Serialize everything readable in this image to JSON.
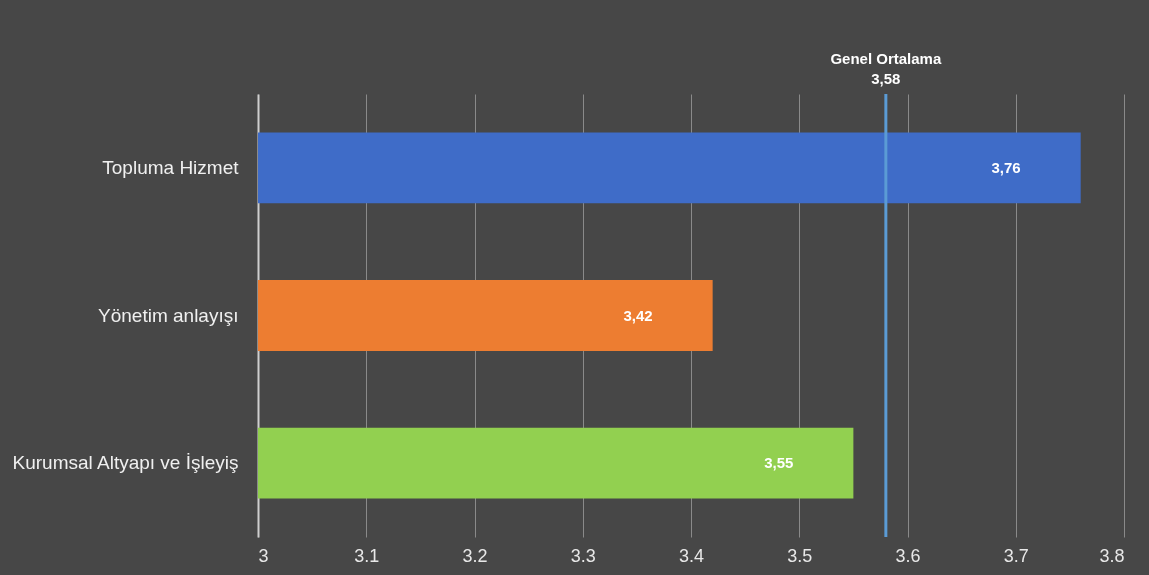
{
  "chart_data": {
    "type": "bar",
    "orientation": "horizontal",
    "categories": [
      "Topluma Hizmet",
      "Yönetim anlayışı",
      "Kurumsal Altyapı ve İşleyiş"
    ],
    "values": [
      3.76,
      3.42,
      3.55
    ],
    "colors": [
      "#3f6cc8",
      "#ed7d31",
      "#92d050"
    ],
    "value_labels": [
      "3,76",
      "3,42",
      "3,55"
    ],
    "xlim": [
      3,
      3.8
    ],
    "xticks": [
      3,
      3.1,
      3.2,
      3.3,
      3.4,
      3.5,
      3.6,
      3.7,
      3.8
    ],
    "grid": "x",
    "ref_lines": [
      {
        "axis": "x",
        "value": 3.58,
        "label": "Genel Ortalama\n3,58",
        "color": "#5b9bd5"
      }
    ]
  }
}
